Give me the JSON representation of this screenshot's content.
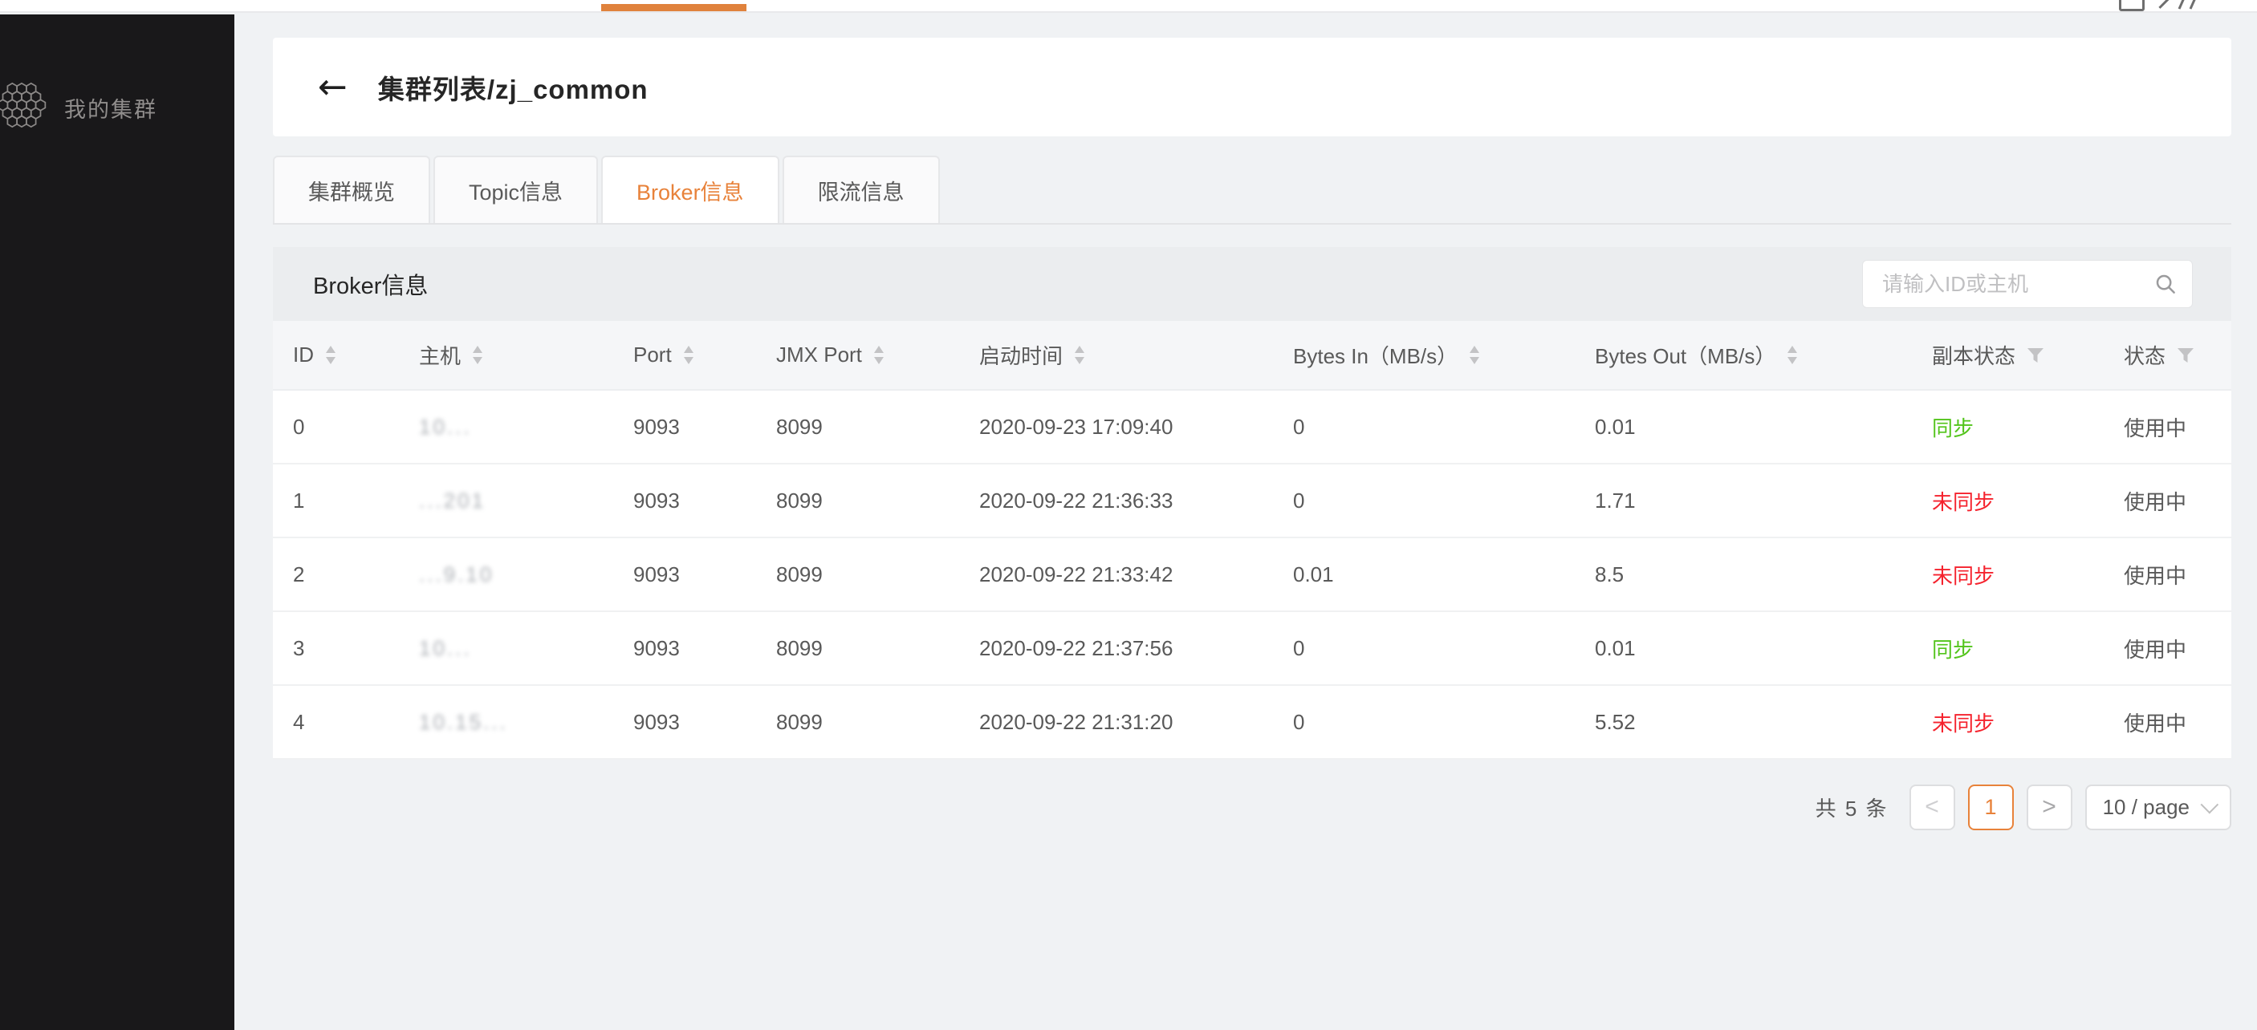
{
  "colors": {
    "accent_orange": "#e8823a",
    "sync_green": "#52c41a",
    "unsync_red": "#f5222d",
    "sidebar_bg": "#19181a"
  },
  "topbar": {
    "has_active_indicator": true
  },
  "sidebar": {
    "items": [
      {
        "label": "我的集群"
      }
    ]
  },
  "header": {
    "back_icon": "←",
    "title": "集群列表/zj_common"
  },
  "tabs": [
    {
      "label": "集群概览",
      "active": false
    },
    {
      "label": "Topic信息",
      "active": false
    },
    {
      "label": "Broker信息",
      "active": true
    },
    {
      "label": "限流信息",
      "active": false
    }
  ],
  "panel": {
    "title": "Broker信息",
    "search_placeholder": "请输入ID或主机"
  },
  "table": {
    "columns": [
      {
        "key": "id",
        "label": "ID",
        "control": "sort"
      },
      {
        "key": "host",
        "label": "主机",
        "control": "sort"
      },
      {
        "key": "port",
        "label": "Port",
        "control": "sort"
      },
      {
        "key": "jmx",
        "label": "JMX Port",
        "control": "sort"
      },
      {
        "key": "start",
        "label": "启动时间",
        "control": "sort"
      },
      {
        "key": "bytesin",
        "label": "Bytes In（MB/s）",
        "control": "sort"
      },
      {
        "key": "bytesout",
        "label": "Bytes Out（MB/s）",
        "control": "sort"
      },
      {
        "key": "replica",
        "label": "副本状态",
        "control": "filter"
      },
      {
        "key": "status",
        "label": "状态",
        "control": "filter"
      }
    ],
    "rows": [
      {
        "id": "0",
        "host_fragment": "10...",
        "port": "9093",
        "jmx": "8099",
        "start": "2020-09-23 17:09:40",
        "bytes_in": "0",
        "bytes_out": "0.01",
        "replica": "同步",
        "replica_state": "ok",
        "status": "使用中"
      },
      {
        "id": "1",
        "host_fragment": "...201",
        "port": "9093",
        "jmx": "8099",
        "start": "2020-09-22 21:36:33",
        "bytes_in": "0",
        "bytes_out": "1.71",
        "replica": "未同步",
        "replica_state": "bad",
        "status": "使用中"
      },
      {
        "id": "2",
        "host_fragment": "...9.10",
        "port": "9093",
        "jmx": "8099",
        "start": "2020-09-22 21:33:42",
        "bytes_in": "0.01",
        "bytes_out": "8.5",
        "replica": "未同步",
        "replica_state": "bad",
        "status": "使用中"
      },
      {
        "id": "3",
        "host_fragment": "10...",
        "port": "9093",
        "jmx": "8099",
        "start": "2020-09-22 21:37:56",
        "bytes_in": "0",
        "bytes_out": "0.01",
        "replica": "同步",
        "replica_state": "ok",
        "status": "使用中"
      },
      {
        "id": "4",
        "host_fragment": "10.15...",
        "port": "9093",
        "jmx": "8099",
        "start": "2020-09-22 21:31:20",
        "bytes_in": "0",
        "bytes_out": "5.52",
        "replica": "未同步",
        "replica_state": "bad",
        "status": "使用中"
      }
    ]
  },
  "pagination": {
    "total_text": "共 5 条",
    "prev_icon": "<",
    "current_page": "1",
    "next_icon": ">",
    "page_size_label": "10 / page"
  }
}
